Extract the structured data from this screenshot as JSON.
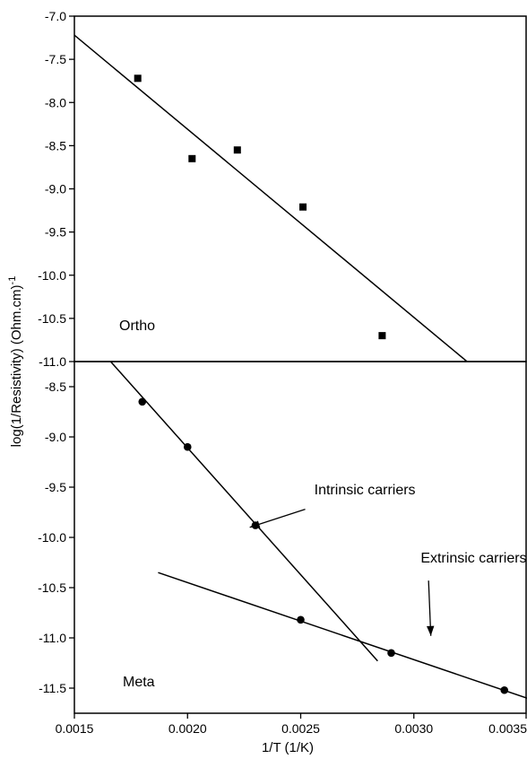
{
  "chart_data": [
    {
      "type": "scatter",
      "panel": "top",
      "label": "Ortho",
      "xlim": [
        0.0015,
        0.0035
      ],
      "ylim": [
        -11.0,
        -7.0
      ],
      "yticks": [
        -7.0,
        -7.5,
        -8.0,
        -8.5,
        -9.0,
        -9.5,
        -10.0,
        -10.5,
        -11.0
      ],
      "ytick_labels": [
        "-7.0",
        "-7.5",
        "-8.0",
        "-8.5",
        "-9.0",
        "-9.5",
        "-10.0",
        "-10.5",
        "-11.0"
      ],
      "marker": "square",
      "points": [
        {
          "x": 0.00178,
          "y": -7.72
        },
        {
          "x": 0.00202,
          "y": -8.65
        },
        {
          "x": 0.00222,
          "y": -8.55
        },
        {
          "x": 0.00251,
          "y": -9.21
        },
        {
          "x": 0.00286,
          "y": -10.7
        }
      ],
      "fit_lines": [
        {
          "x": [
            0.0015,
            0.003235
          ],
          "y": [
            -7.22,
            -11.0
          ]
        }
      ]
    },
    {
      "type": "scatter",
      "panel": "bottom",
      "label": "Meta",
      "xlim": [
        0.0015,
        0.0035
      ],
      "ylim": [
        -11.75,
        -8.25
      ],
      "yticks": [
        -8.5,
        -9.0,
        -9.5,
        -10.0,
        -10.5,
        -11.0,
        -11.5
      ],
      "ytick_labels": [
        "-8.5",
        "-9.0",
        "-9.5",
        "-10.0",
        "-10.5",
        "-11.0",
        "-11.5"
      ],
      "marker": "circle",
      "points": [
        {
          "x": 0.0018,
          "y": -8.65
        },
        {
          "x": 0.002,
          "y": -9.1
        },
        {
          "x": 0.0023,
          "y": -9.88
        },
        {
          "x": 0.0025,
          "y": -10.82
        },
        {
          "x": 0.0029,
          "y": -11.15
        },
        {
          "x": 0.0034,
          "y": -11.52
        }
      ],
      "fit_lines": [
        {
          "x": [
            0.00166,
            0.00284
          ],
          "y": [
            -8.25,
            -11.23
          ]
        },
        {
          "x": [
            0.00187,
            0.0035
          ],
          "y": [
            -10.35,
            -11.6
          ]
        }
      ],
      "annotations": [
        {
          "text": "Intrinsic carriers",
          "x": 0.00256,
          "y": -9.57,
          "arrow_from": [
            0.00252,
            -9.72
          ],
          "arrow_to": [
            0.002275,
            -9.9
          ]
        },
        {
          "text": "Extrinsic carriers",
          "x": 0.00303,
          "y": -10.25,
          "arrow_from": [
            0.003065,
            -10.43
          ],
          "arrow_to": [
            0.003075,
            -10.98
          ]
        }
      ]
    }
  ],
  "xaxis": {
    "label": "1/T (1/K)",
    "ticks": [
      0.0015,
      0.002,
      0.0025,
      0.003,
      0.0035
    ],
    "tick_labels": [
      "0.0015",
      "0.0020",
      "0.0025",
      "0.0030",
      "0.0035"
    ]
  },
  "yaxis": {
    "label_main": "log(1/Resistivity) (Ohm.cm)",
    "label_sup": "-1"
  }
}
